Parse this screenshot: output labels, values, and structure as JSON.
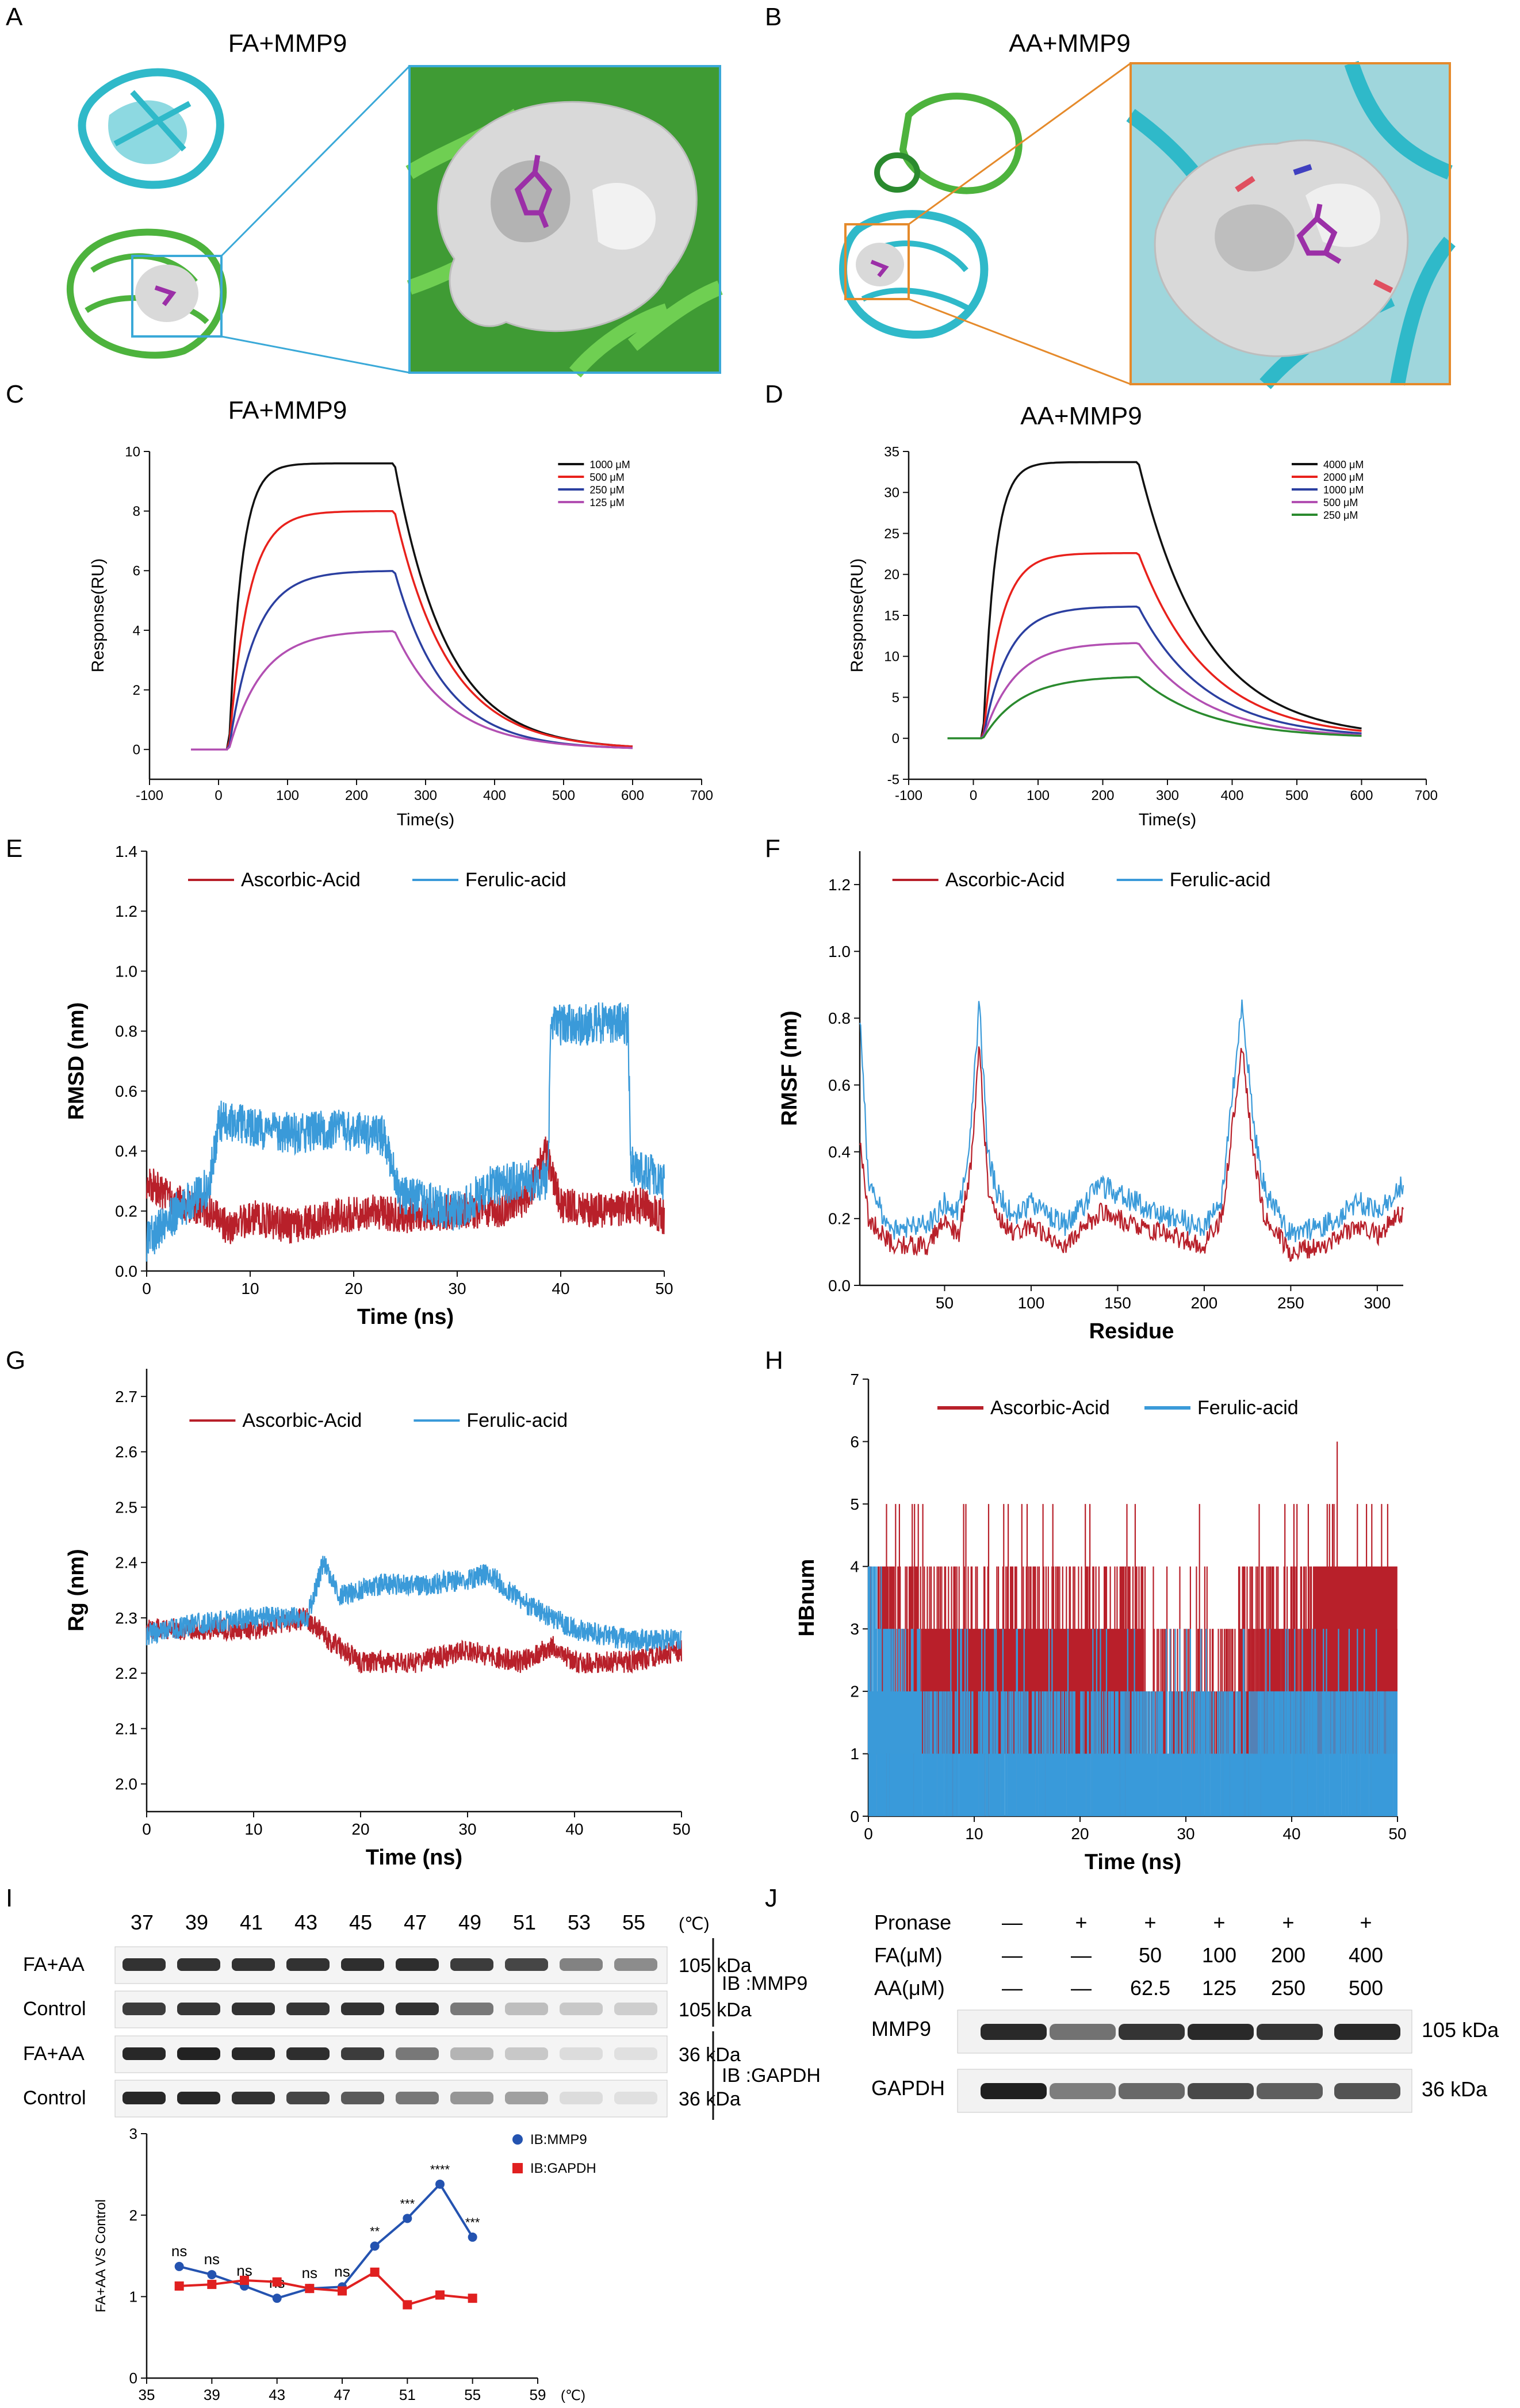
{
  "panels": {
    "A": {
      "letter": "A",
      "title": "FA+MMP9"
    },
    "B": {
      "letter": "B",
      "title": "AA+MMP9"
    },
    "C": {
      "letter": "C"
    },
    "D": {
      "letter": "D"
    },
    "E": {
      "letter": "E"
    },
    "F": {
      "letter": "F"
    },
    "G": {
      "letter": "G"
    },
    "H": {
      "letter": "H"
    },
    "I": {
      "letter": "I"
    },
    "J": {
      "letter": "J"
    }
  },
  "colors": {
    "black": "#111111",
    "red": "#e8211c",
    "blue": "#2b3fa0",
    "purple": "#b24fb2",
    "green": "#2a8a2e",
    "md_red": "#b8202a",
    "md_blue": "#3a9ad9",
    "wb_blue": "#2453b0",
    "wb_red": "#e02020",
    "protein_cyan": "#2fb9c9",
    "protein_green": "#4db33d",
    "surface": "#d9d9d9",
    "ligand": "#9b2fa7",
    "box_blue": "#3aa9d8",
    "box_orange": "#e58a2b"
  },
  "chart_data": [
    {
      "id": "C",
      "type": "line",
      "title": "FA+MMP9",
      "xlabel": "Time(s)",
      "ylabel": "Response(RU)",
      "xlim": [
        -100,
        700
      ],
      "ylim": [
        -1,
        10
      ],
      "xticks": [
        -100,
        0,
        100,
        200,
        300,
        400,
        500,
        600,
        700
      ],
      "yticks": [
        0,
        2,
        4,
        6,
        8,
        10
      ],
      "legend_position": "top-right",
      "assoc_start": 15,
      "dissoc_start": 255,
      "end": 600,
      "series": [
        {
          "name": "1000 μM",
          "color": "#111111",
          "plateau": 9.6,
          "end_value": 0.1
        },
        {
          "name": "500 μM",
          "color": "#e8211c",
          "plateau": 8.0,
          "end_value": 0.1
        },
        {
          "name": "250 μM",
          "color": "#2b3fa0",
          "plateau": 6.0,
          "end_value": 0.05
        },
        {
          "name": "125 μM",
          "color": "#b24fb2",
          "plateau": 4.0,
          "end_value": 0.05
        }
      ]
    },
    {
      "id": "D",
      "type": "line",
      "title": "AA+MMP9",
      "xlabel": "Time(s)",
      "ylabel": "Response(RU)",
      "xlim": [
        -100,
        700
      ],
      "ylim": [
        -5,
        35
      ],
      "xticks": [
        -100,
        0,
        100,
        200,
        300,
        400,
        500,
        600,
        700
      ],
      "yticks": [
        -5,
        0,
        5,
        10,
        15,
        20,
        25,
        30,
        35
      ],
      "legend_position": "top-right",
      "assoc_start": 15,
      "dissoc_start": 255,
      "end": 600,
      "series": [
        {
          "name": "4000 μM",
          "color": "#111111",
          "plateau": 33.7,
          "end_value": 1.2
        },
        {
          "name": "2000 μM",
          "color": "#e8211c",
          "plateau": 22.6,
          "end_value": 0.9
        },
        {
          "name": "1000 μM",
          "color": "#2b3fa0",
          "plateau": 16.1,
          "end_value": 0.6
        },
        {
          "name": "500 μM",
          "color": "#b24fb2",
          "plateau": 11.7,
          "end_value": 0.4
        },
        {
          "name": "250 μM",
          "color": "#2a8a2e",
          "plateau": 7.6,
          "end_value": 0.3
        }
      ]
    },
    {
      "id": "E",
      "type": "line",
      "title": "",
      "xlabel": "Time (ns)",
      "ylabel": "RMSD (nm)",
      "xlim": [
        0,
        50
      ],
      "ylim": [
        0.0,
        1.4
      ],
      "xticks": [
        0,
        10,
        20,
        30,
        40,
        50
      ],
      "yticks": [
        0.0,
        0.2,
        0.4,
        0.6,
        0.8,
        1.0,
        1.2,
        1.4
      ],
      "legend_position": "top-center",
      "series": [
        {
          "name": "Ascorbic-Acid",
          "color": "#b8202a",
          "keypoints": [
            [
              0,
              0.3
            ],
            [
              2,
              0.25
            ],
            [
              4,
              0.22
            ],
            [
              6,
              0.2
            ],
            [
              8,
              0.14
            ],
            [
              10,
              0.18
            ],
            [
              14,
              0.15
            ],
            [
              18,
              0.18
            ],
            [
              22,
              0.2
            ],
            [
              26,
              0.18
            ],
            [
              30,
              0.2
            ],
            [
              34,
              0.2
            ],
            [
              37,
              0.25
            ],
            [
              38.5,
              0.4
            ],
            [
              40,
              0.22
            ],
            [
              44,
              0.2
            ],
            [
              48,
              0.22
            ],
            [
              50,
              0.18
            ]
          ],
          "noise": 0.06
        },
        {
          "name": "Ferulic-acid",
          "color": "#3a9ad9",
          "keypoints": [
            [
              0,
              0.1
            ],
            [
              3,
              0.2
            ],
            [
              6,
              0.28
            ],
            [
              7,
              0.5
            ],
            [
              10,
              0.48
            ],
            [
              14,
              0.46
            ],
            [
              18,
              0.47
            ],
            [
              23,
              0.45
            ],
            [
              24.5,
              0.25
            ],
            [
              28,
              0.22
            ],
            [
              30,
              0.2
            ],
            [
              33,
              0.28
            ],
            [
              36,
              0.3
            ],
            [
              38.8,
              0.3
            ],
            [
              39,
              0.82
            ],
            [
              42,
              0.82
            ],
            [
              45,
              0.83
            ],
            [
              46.5,
              0.82
            ],
            [
              46.8,
              0.35
            ],
            [
              50,
              0.3
            ]
          ],
          "noise": 0.07
        }
      ]
    },
    {
      "id": "F",
      "type": "line",
      "title": "",
      "xlabel": "Residue",
      "ylabel": "RMSF (nm)",
      "xlim": [
        1,
        315
      ],
      "ylim": [
        0.0,
        1.3
      ],
      "xticks": [
        50,
        100,
        150,
        200,
        250,
        300
      ],
      "yticks": [
        0.0,
        0.2,
        0.4,
        0.6,
        0.8,
        1.0,
        1.2
      ],
      "legend_position": "top-center",
      "series": [
        {
          "name": "Ascorbic-Acid",
          "color": "#b8202a",
          "keypoints": [
            [
              1,
              0.45
            ],
            [
              6,
              0.2
            ],
            [
              20,
              0.12
            ],
            [
              40,
              0.12
            ],
            [
              50,
              0.2
            ],
            [
              58,
              0.15
            ],
            [
              65,
              0.35
            ],
            [
              70,
              0.72
            ],
            [
              75,
              0.3
            ],
            [
              80,
              0.22
            ],
            [
              90,
              0.15
            ],
            [
              100,
              0.18
            ],
            [
              120,
              0.12
            ],
            [
              140,
              0.22
            ],
            [
              160,
              0.18
            ],
            [
              180,
              0.15
            ],
            [
              200,
              0.12
            ],
            [
              210,
              0.2
            ],
            [
              222,
              0.72
            ],
            [
              228,
              0.4
            ],
            [
              235,
              0.2
            ],
            [
              250,
              0.1
            ],
            [
              270,
              0.12
            ],
            [
              290,
              0.18
            ],
            [
              300,
              0.15
            ],
            [
              315,
              0.22
            ]
          ],
          "noise": 0.03
        },
        {
          "name": "Ferulic-acid",
          "color": "#3a9ad9",
          "keypoints": [
            [
              1,
              0.82
            ],
            [
              6,
              0.3
            ],
            [
              20,
              0.16
            ],
            [
              40,
              0.18
            ],
            [
              50,
              0.25
            ],
            [
              58,
              0.22
            ],
            [
              65,
              0.45
            ],
            [
              70,
              0.84
            ],
            [
              75,
              0.4
            ],
            [
              80,
              0.28
            ],
            [
              90,
              0.2
            ],
            [
              100,
              0.25
            ],
            [
              120,
              0.18
            ],
            [
              140,
              0.3
            ],
            [
              160,
              0.25
            ],
            [
              180,
              0.2
            ],
            [
              200,
              0.18
            ],
            [
              210,
              0.25
            ],
            [
              222,
              0.86
            ],
            [
              228,
              0.5
            ],
            [
              235,
              0.28
            ],
            [
              250,
              0.15
            ],
            [
              270,
              0.18
            ],
            [
              290,
              0.25
            ],
            [
              300,
              0.22
            ],
            [
              315,
              0.3
            ]
          ],
          "noise": 0.035
        }
      ]
    },
    {
      "id": "G",
      "type": "line",
      "title": "",
      "xlabel": "Time (ns)",
      "ylabel": "Rg (nm)",
      "xlim": [
        0,
        50
      ],
      "ylim": [
        1.95,
        2.75
      ],
      "xticks": [
        0,
        10,
        20,
        30,
        40,
        50
      ],
      "yticks": [
        2.0,
        2.1,
        2.2,
        2.3,
        2.4,
        2.5,
        2.6,
        2.7
      ],
      "legend_position": "top-center",
      "series": [
        {
          "name": "Ascorbic-Acid",
          "color": "#b8202a",
          "keypoints": [
            [
              0,
              2.28
            ],
            [
              5,
              2.28
            ],
            [
              10,
              2.28
            ],
            [
              15,
              2.3
            ],
            [
              17,
              2.26
            ],
            [
              20,
              2.22
            ],
            [
              25,
              2.22
            ],
            [
              30,
              2.24
            ],
            [
              35,
              2.22
            ],
            [
              38,
              2.25
            ],
            [
              40,
              2.22
            ],
            [
              45,
              2.22
            ],
            [
              50,
              2.24
            ]
          ],
          "noise": 0.02
        },
        {
          "name": "Ferulic-acid",
          "color": "#3a9ad9",
          "keypoints": [
            [
              0,
              2.27
            ],
            [
              5,
              2.29
            ],
            [
              10,
              2.3
            ],
            [
              15,
              2.3
            ],
            [
              16.5,
              2.4
            ],
            [
              18,
              2.34
            ],
            [
              22,
              2.36
            ],
            [
              26,
              2.36
            ],
            [
              30,
              2.37
            ],
            [
              32,
              2.38
            ],
            [
              35,
              2.33
            ],
            [
              38,
              2.3
            ],
            [
              40,
              2.28
            ],
            [
              45,
              2.26
            ],
            [
              50,
              2.26
            ]
          ],
          "noise": 0.02
        }
      ]
    },
    {
      "id": "H",
      "type": "line",
      "title": "",
      "xlabel": "Time (ns)",
      "ylabel": "HBnum",
      "xlim": [
        0,
        50
      ],
      "ylim": [
        0,
        7
      ],
      "xticks": [
        0,
        10,
        20,
        30,
        40,
        50
      ],
      "yticks": [
        0,
        1,
        2,
        3,
        4,
        5,
        6,
        7
      ],
      "legend_position": "top-center",
      "series": [
        {
          "name": "Ascorbic-Acid",
          "color": "#b8202a",
          "range": [
            0,
            5
          ],
          "peak": [
            44.3,
            6
          ]
        },
        {
          "name": "Ferulic-acid",
          "color": "#3a9ad9",
          "range": [
            0,
            4
          ]
        }
      ]
    },
    {
      "id": "I",
      "type": "line",
      "title": "",
      "xlabel": "",
      "ylabel": "FA+AA VS Control",
      "xlim": [
        35,
        59
      ],
      "ylim": [
        0,
        3
      ],
      "xticks": [
        35,
        39,
        43,
        47,
        51,
        55,
        59
      ],
      "x_unit": "(℃)",
      "yticks": [
        0,
        1,
        2,
        3
      ],
      "legend_position": "top-right",
      "series": [
        {
          "name": "IB:MMP9",
          "color": "#2453b0",
          "marker": "circle",
          "x": [
            37,
            39,
            41,
            43,
            45,
            47,
            49,
            51,
            53,
            55
          ],
          "y": [
            1.37,
            1.27,
            1.13,
            0.98,
            1.1,
            1.12,
            1.62,
            1.96,
            2.38,
            1.73
          ],
          "sig": [
            "ns",
            "ns",
            "ns",
            "ns",
            "ns",
            "ns",
            "**",
            "***",
            "****",
            "***"
          ]
        },
        {
          "name": "IB:GAPDH",
          "color": "#e02020",
          "marker": "square",
          "x": [
            37,
            39,
            41,
            43,
            45,
            47,
            49,
            51,
            53,
            55
          ],
          "y": [
            1.13,
            1.15,
            1.2,
            1.18,
            1.1,
            1.07,
            1.3,
            0.9,
            1.02,
            0.98
          ]
        }
      ]
    }
  ],
  "blot_I": {
    "temps": [
      "37",
      "39",
      "41",
      "43",
      "45",
      "47",
      "49",
      "51",
      "53",
      "55"
    ],
    "unit": "(℃)",
    "rows": [
      {
        "label": "FA+AA",
        "kda": "105 kDa",
        "intensity": [
          0.9,
          0.9,
          0.9,
          0.9,
          0.92,
          0.92,
          0.85,
          0.8,
          0.5,
          0.45
        ]
      },
      {
        "label": "Control",
        "kda": "105 kDa",
        "intensity": [
          0.85,
          0.88,
          0.9,
          0.88,
          0.9,
          0.9,
          0.55,
          0.2,
          0.15,
          0.12
        ]
      },
      {
        "label": "FA+AA",
        "kda": "36 kDa",
        "intensity": [
          0.95,
          0.98,
          0.95,
          0.92,
          0.85,
          0.55,
          0.25,
          0.15,
          0.05,
          0.03
        ]
      },
      {
        "label": "Control",
        "kda": "36 kDa",
        "intensity": [
          0.95,
          0.95,
          0.9,
          0.8,
          0.7,
          0.55,
          0.4,
          0.35,
          0.05,
          0.03
        ]
      }
    ],
    "groups": [
      {
        "label": "IB :MMP9"
      },
      {
        "label": "IB :GAPDH"
      }
    ]
  },
  "blot_J": {
    "header_rows": [
      {
        "label": "Pronase",
        "values": [
          "—",
          "+",
          "+",
          "+",
          "+",
          "+"
        ]
      },
      {
        "label": "FA(μM)",
        "values": [
          "—",
          "—",
          "50",
          "100",
          "200",
          "400"
        ]
      },
      {
        "label": "AA(μM)",
        "values": [
          "—",
          "—",
          "62.5",
          "125",
          "250",
          "500"
        ]
      }
    ],
    "rows": [
      {
        "label": "MMP9",
        "kda": "105 kDa",
        "intensity": [
          0.9,
          0.55,
          0.85,
          0.9,
          0.85,
          0.9
        ]
      },
      {
        "label": "GAPDH",
        "kda": "36 kDa",
        "intensity": [
          0.95,
          0.5,
          0.6,
          0.75,
          0.65,
          0.7
        ]
      }
    ]
  }
}
